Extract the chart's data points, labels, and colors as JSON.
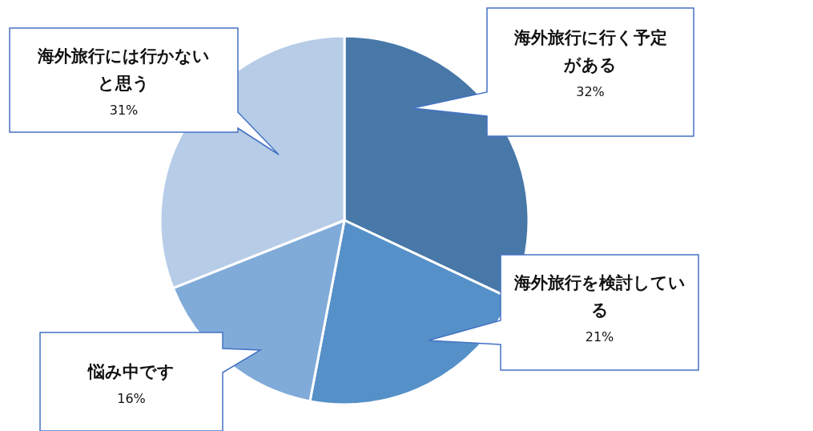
{
  "chart_data": {
    "type": "pie",
    "categories": [
      "海外旅行に行く予定がある",
      "海外旅行を検討している",
      "悩み中です",
      "海外旅行には行かないと思う"
    ],
    "values": [
      32,
      21,
      16,
      31
    ],
    "colors": [
      "#4878a8",
      "#5590c8",
      "#80abd9",
      "#b6cce7"
    ],
    "value_labels": [
      "32%",
      "21%",
      "16%",
      "31%"
    ]
  }
}
